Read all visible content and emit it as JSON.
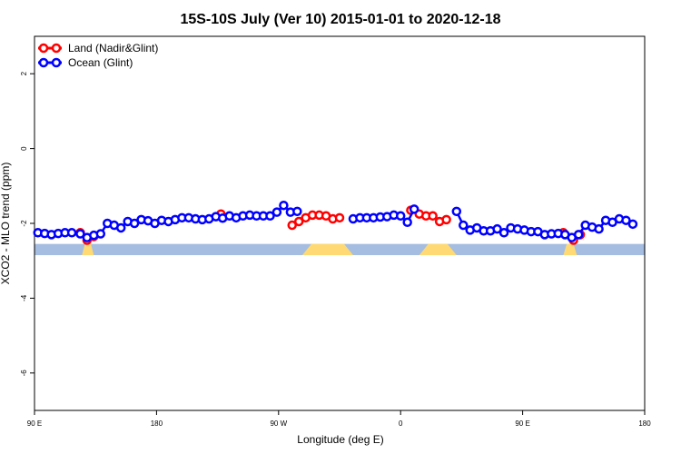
{
  "chart_data": {
    "type": "line",
    "title": "15S-10S July (Ver 10)   2015-01-01 to 2020-12-18",
    "xlabel": "Longitude (deg E)",
    "ylabel": "XCO2 - MLO trend (ppm)",
    "xlim": [
      90,
      450
    ],
    "ylim": [
      -7,
      3
    ],
    "x_ticks": [
      {
        "value": 90,
        "label": "90 E"
      },
      {
        "value": 162,
        "label": "180"
      },
      {
        "value": 234,
        "label": "90 W"
      },
      {
        "value": 306,
        "label": "0"
      },
      {
        "value": 378,
        "label": "90 E"
      },
      {
        "value": 450,
        "label": "180"
      }
    ],
    "y_ticks": [
      {
        "value": 2,
        "label": "2"
      },
      {
        "value": 0,
        "label": "0"
      },
      {
        "value": -2,
        "label": "-2"
      },
      {
        "value": -4,
        "label": "-4"
      },
      {
        "value": -6,
        "label": "-6"
      }
    ],
    "legend_position": "top-left",
    "series": [
      {
        "name": "Land (Nadir&Glint)",
        "color": "#ff0000",
        "segments": [
          [
            [
              117,
              -2.25
            ],
            [
              121,
              -2.45
            ],
            [
              125,
              -2.35
            ]
          ],
          [
            [
              200,
              -1.75
            ]
          ],
          [
            [
              242,
              -2.05
            ],
            [
              246,
              -1.95
            ],
            [
              250,
              -1.85
            ],
            [
              254,
              -1.78
            ],
            [
              258,
              -1.78
            ],
            [
              262,
              -1.8
            ],
            [
              266,
              -1.88
            ],
            [
              270,
              -1.85
            ]
          ],
          [
            [
              312,
              -1.65
            ],
            [
              317,
              -1.75
            ],
            [
              321,
              -1.8
            ],
            [
              325,
              -1.8
            ],
            [
              329,
              -1.95
            ],
            [
              333,
              -1.9
            ]
          ],
          [
            [
              402,
              -2.25
            ],
            [
              408,
              -2.45
            ],
            [
              412,
              -2.3
            ]
          ]
        ]
      },
      {
        "name": "Ocean (Glint)",
        "color": "#0000ff",
        "points": [
          [
            92,
            -2.25
          ],
          [
            96,
            -2.27
          ],
          [
            100,
            -2.3
          ],
          [
            104,
            -2.27
          ],
          [
            108,
            -2.25
          ],
          [
            112,
            -2.25
          ],
          [
            117,
            -2.28
          ],
          [
            121,
            -2.38
          ],
          [
            125,
            -2.32
          ],
          [
            129,
            -2.28
          ],
          [
            133,
            -2.0
          ],
          [
            137,
            -2.05
          ],
          [
            141,
            -2.12
          ],
          [
            145,
            -1.95
          ],
          [
            149,
            -2.0
          ],
          [
            153,
            -1.9
          ],
          [
            157,
            -1.93
          ],
          [
            161,
            -2.0
          ],
          [
            165,
            -1.92
          ],
          [
            169,
            -1.95
          ],
          [
            173,
            -1.9
          ],
          [
            177,
            -1.85
          ],
          [
            181,
            -1.85
          ],
          [
            185,
            -1.88
          ],
          [
            189,
            -1.9
          ],
          [
            193,
            -1.88
          ],
          [
            197,
            -1.82
          ],
          [
            201,
            -1.86
          ],
          [
            205,
            -1.8
          ],
          [
            209,
            -1.85
          ],
          [
            213,
            -1.8
          ],
          [
            217,
            -1.78
          ],
          [
            221,
            -1.8
          ],
          [
            225,
            -1.8
          ],
          [
            229,
            -1.8
          ],
          [
            233,
            -1.7
          ],
          [
            237,
            -1.52
          ],
          [
            241,
            -1.7
          ],
          [
            245,
            -1.68
          ],
          [
            278,
            -1.88
          ],
          [
            282,
            -1.85
          ],
          [
            286,
            -1.85
          ],
          [
            290,
            -1.85
          ],
          [
            294,
            -1.83
          ],
          [
            298,
            -1.82
          ],
          [
            302,
            -1.78
          ],
          [
            306,
            -1.8
          ],
          [
            310,
            -1.97
          ],
          [
            314,
            -1.62
          ],
          [
            339,
            -1.68
          ],
          [
            343,
            -2.05
          ],
          [
            347,
            -2.18
          ],
          [
            351,
            -2.12
          ],
          [
            355,
            -2.2
          ],
          [
            359,
            -2.2
          ],
          [
            363,
            -2.15
          ],
          [
            367,
            -2.25
          ],
          [
            371,
            -2.12
          ],
          [
            375,
            -2.15
          ],
          [
            379,
            -2.18
          ],
          [
            383,
            -2.22
          ],
          [
            387,
            -2.22
          ],
          [
            391,
            -2.3
          ],
          [
            395,
            -2.28
          ],
          [
            399,
            -2.27
          ],
          [
            403,
            -2.3
          ],
          [
            407,
            -2.38
          ],
          [
            411,
            -2.3
          ],
          [
            415,
            -2.05
          ],
          [
            419,
            -2.1
          ],
          [
            423,
            -2.15
          ],
          [
            427,
            -1.92
          ],
          [
            431,
            -1.97
          ],
          [
            435,
            -1.88
          ],
          [
            439,
            -1.92
          ],
          [
            443,
            -2.02
          ]
        ]
      }
    ],
    "background_bands": {
      "ocean_color": "#a4bde0",
      "land_color": "#ffd973",
      "y_range": [
        -2.55,
        -2.85
      ],
      "land_segments": [
        [
          118,
          125
        ],
        [
          248,
          278
        ],
        [
          317,
          339
        ],
        [
          402,
          410
        ]
      ]
    }
  }
}
